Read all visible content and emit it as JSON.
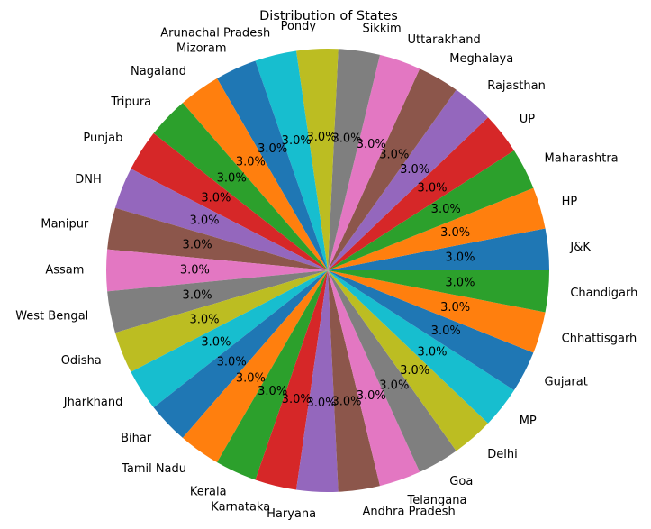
{
  "chart_data": {
    "type": "pie",
    "title": "Distribution of States",
    "autopct_format": "%",
    "colors": [
      "#1f77b4",
      "#ff7f0e",
      "#2ca02c",
      "#d62728",
      "#9467bd",
      "#8c564b",
      "#e377c2",
      "#7f7f7f",
      "#bcbd22",
      "#17becf"
    ],
    "slices": [
      {
        "label": "J&K",
        "value": 3.0
      },
      {
        "label": "HP",
        "value": 3.0
      },
      {
        "label": "Maharashtra",
        "value": 3.0
      },
      {
        "label": "UP",
        "value": 3.0
      },
      {
        "label": "Rajasthan",
        "value": 3.0
      },
      {
        "label": "Meghalaya",
        "value": 3.0
      },
      {
        "label": "Uttarakhand",
        "value": 3.0
      },
      {
        "label": "Sikkim",
        "value": 3.0
      },
      {
        "label": "Pondy",
        "value": 3.0
      },
      {
        "label": "Arunachal Pradesh",
        "value": 3.0
      },
      {
        "label": "Mizoram",
        "value": 3.0
      },
      {
        "label": "Nagaland",
        "value": 3.0
      },
      {
        "label": "Tripura",
        "value": 3.0
      },
      {
        "label": "Punjab",
        "value": 3.0
      },
      {
        "label": "DNH",
        "value": 3.0
      },
      {
        "label": "Manipur",
        "value": 3.0
      },
      {
        "label": "Assam",
        "value": 3.0
      },
      {
        "label": "West Bengal",
        "value": 3.0
      },
      {
        "label": "Odisha",
        "value": 3.0
      },
      {
        "label": "Jharkhand",
        "value": 3.0
      },
      {
        "label": "Bihar",
        "value": 3.0
      },
      {
        "label": "Tamil Nadu",
        "value": 3.0
      },
      {
        "label": "Kerala",
        "value": 3.0
      },
      {
        "label": "Karnataka",
        "value": 3.0
      },
      {
        "label": "Haryana",
        "value": 3.0
      },
      {
        "label": "Andhra Pradesh",
        "value": 3.0
      },
      {
        "label": "Telangana",
        "value": 3.0
      },
      {
        "label": "Goa",
        "value": 3.0
      },
      {
        "label": "Delhi",
        "value": 3.0
      },
      {
        "label": "MP",
        "value": 3.0
      },
      {
        "label": "Gujarat",
        "value": 3.0
      },
      {
        "label": "Chhattisgarh",
        "value": 3.0
      },
      {
        "label": "Chandigarh",
        "value": 3.0
      }
    ]
  }
}
